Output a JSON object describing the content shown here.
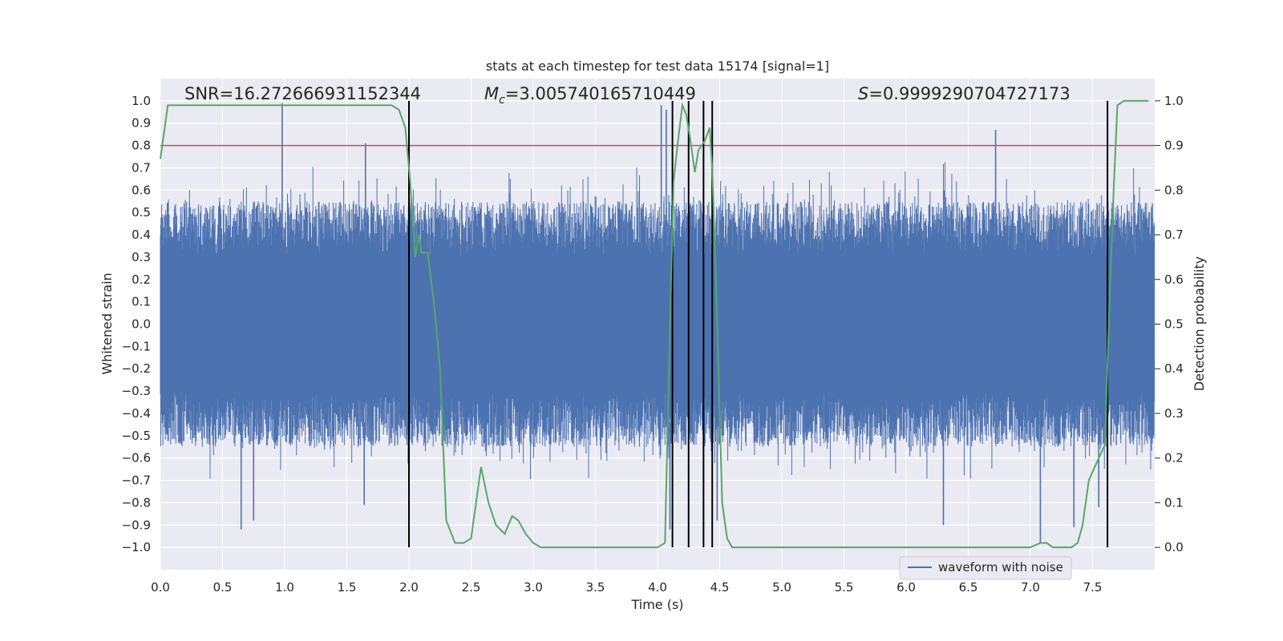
{
  "chart_data": {
    "type": "line",
    "title": "stats at each timestep for test data 15174 [signal=1]",
    "xlabel": "Time (s)",
    "ylabel": "Whitened strain",
    "y2label": "Detection probability",
    "xlim": [
      0,
      8
    ],
    "ylim": [
      -1.1,
      1.1
    ],
    "y2lim": [
      -0.05,
      1.05
    ],
    "xticks": [
      "0.0",
      "0.5",
      "1.0",
      "1.5",
      "2.0",
      "2.5",
      "3.0",
      "3.5",
      "4.0",
      "4.5",
      "5.0",
      "5.5",
      "6.0",
      "6.5",
      "7.0",
      "7.5"
    ],
    "yticks": [
      "−1.0",
      "−0.9",
      "−0.8",
      "−0.7",
      "−0.6",
      "−0.5",
      "−0.4",
      "−0.3",
      "−0.2",
      "−0.1",
      "0.0",
      "0.1",
      "0.2",
      "0.3",
      "0.4",
      "0.5",
      "0.6",
      "0.7",
      "0.8",
      "0.9",
      "1.0"
    ],
    "y2ticks": [
      "0.0",
      "0.1",
      "0.2",
      "0.3",
      "0.4",
      "0.5",
      "0.6",
      "0.7",
      "0.8",
      "0.9",
      "1.0"
    ],
    "annotations": {
      "snr": "SNR=16.272666931152344",
      "mc_symbol": "M",
      "mc_sub": "c",
      "mc_value": "=3.005740165710449",
      "s_symbol": "S",
      "s_value": "=0.9999290704727173"
    },
    "legend": {
      "label": "waveform with noise",
      "position": "lower-right"
    },
    "threshold": 0.9,
    "detection_times": [
      2.0,
      4.12,
      4.25,
      4.37,
      4.44,
      7.62
    ],
    "waveform": {
      "name": "waveform with noise",
      "envelope_min": -0.55,
      "envelope_max": 0.55,
      "spikes": [
        {
          "t": 0.98,
          "v": 0.99
        },
        {
          "t": 0.98,
          "v": 0.2
        },
        {
          "t": 1.65,
          "v": 0.81
        },
        {
          "t": 0.65,
          "v": -0.92
        },
        {
          "t": 0.75,
          "v": -0.88
        },
        {
          "t": 1.64,
          "v": -0.81
        },
        {
          "t": 2.0,
          "v": -0.76
        },
        {
          "t": 4.03,
          "v": 0.98
        },
        {
          "t": 4.07,
          "v": 0.96
        },
        {
          "t": 4.1,
          "v": -0.92
        },
        {
          "t": 4.48,
          "v": -0.88
        },
        {
          "t": 6.72,
          "v": 0.87
        },
        {
          "t": 6.3,
          "v": -0.9
        },
        {
          "t": 7.08,
          "v": -0.98
        },
        {
          "t": 7.35,
          "v": -0.91
        },
        {
          "t": 7.55,
          "v": -0.82
        }
      ]
    },
    "series": [
      {
        "name": "detection probability",
        "axis": "right",
        "color": "#55a868",
        "x": [
          0.0,
          0.06,
          0.12,
          0.2,
          0.3,
          0.4,
          0.5,
          0.6,
          0.7,
          0.8,
          0.9,
          1.0,
          1.1,
          1.2,
          1.3,
          1.4,
          1.5,
          1.6,
          1.7,
          1.78,
          1.86,
          1.92,
          1.97,
          2.01,
          2.05,
          2.08,
          2.1,
          2.15,
          2.2,
          2.25,
          2.3,
          2.37,
          2.44,
          2.5,
          2.58,
          2.64,
          2.7,
          2.77,
          2.83,
          2.88,
          2.94,
          3.0,
          3.06,
          3.1,
          3.2,
          3.3,
          3.4,
          3.5,
          3.6,
          3.7,
          3.8,
          3.9,
          4.0,
          4.06,
          4.1,
          4.13,
          4.16,
          4.2,
          4.23,
          4.26,
          4.3,
          4.33,
          4.38,
          4.42,
          4.44,
          4.47,
          4.52,
          4.56,
          4.6,
          4.7,
          4.8,
          4.9,
          5.0,
          5.5,
          6.0,
          6.3,
          6.5,
          6.8,
          7.0,
          7.08,
          7.13,
          7.18,
          7.25,
          7.33,
          7.38,
          7.42,
          7.47,
          7.55,
          7.6,
          7.63,
          7.67,
          7.7,
          7.75,
          7.8,
          7.85,
          7.9,
          7.95
        ],
        "y": [
          0.87,
          0.99,
          0.99,
          0.99,
          0.99,
          0.99,
          0.99,
          0.99,
          0.99,
          0.99,
          0.99,
          0.99,
          0.99,
          0.99,
          0.99,
          0.99,
          0.99,
          0.99,
          0.99,
          0.99,
          0.99,
          0.98,
          0.94,
          0.82,
          0.65,
          0.7,
          0.66,
          0.66,
          0.55,
          0.4,
          0.06,
          0.01,
          0.01,
          0.02,
          0.18,
          0.1,
          0.05,
          0.03,
          0.07,
          0.06,
          0.03,
          0.01,
          0.0,
          0.0,
          0.0,
          0.0,
          0.0,
          0.0,
          0.0,
          0.0,
          0.0,
          0.0,
          0.0,
          0.01,
          0.5,
          0.82,
          0.9,
          0.99,
          0.97,
          0.92,
          0.84,
          0.89,
          0.91,
          0.94,
          0.85,
          0.6,
          0.1,
          0.02,
          0.0,
          0.0,
          0.0,
          0.0,
          0.0,
          0.0,
          0.0,
          0.0,
          0.0,
          0.0,
          0.0,
          0.01,
          0.01,
          0.0,
          0.0,
          0.0,
          0.01,
          0.05,
          0.15,
          0.2,
          0.23,
          0.5,
          0.8,
          0.99,
          1.0,
          1.0,
          1.0,
          1.0,
          1.0
        ]
      }
    ],
    "colors": {
      "background": "#eaeaf2",
      "grid": "#ffffff",
      "waveform": "#4c72b0",
      "probability": "#55a868",
      "threshold": "#c44e52",
      "detection": "#000000"
    }
  }
}
